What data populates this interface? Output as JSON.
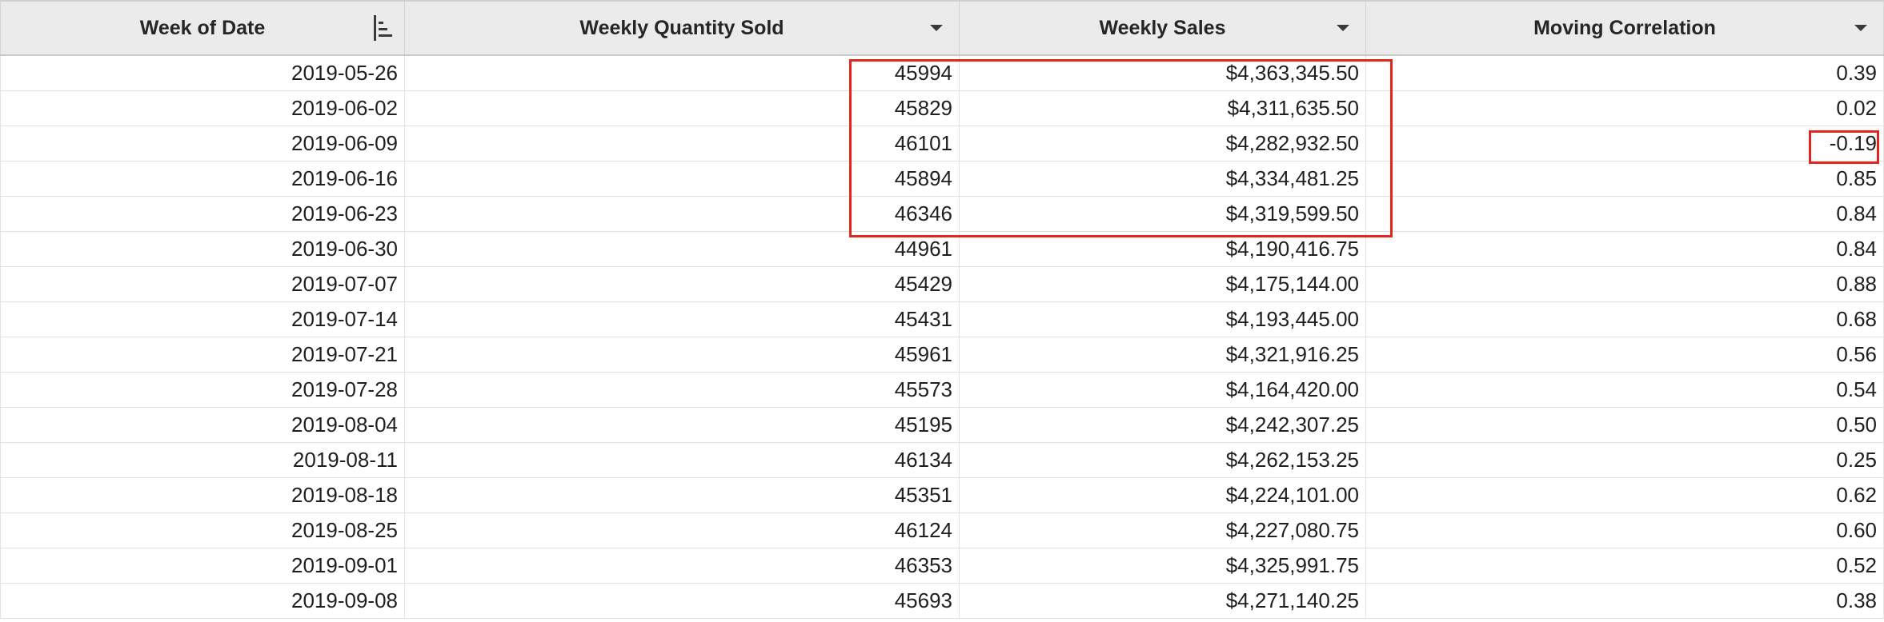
{
  "table": {
    "columns": [
      {
        "key": "week",
        "label": "Week of Date",
        "icon": "sort-icon"
      },
      {
        "key": "qty",
        "label": "Weekly Quantity Sold",
        "icon": "chevron-down-icon"
      },
      {
        "key": "sales",
        "label": "Weekly Sales",
        "icon": "chevron-down-icon"
      },
      {
        "key": "corr",
        "label": "Moving Correlation",
        "icon": "chevron-down-icon"
      }
    ],
    "rows": [
      {
        "week": "2019-05-26",
        "qty": "45994",
        "sales": "$4,363,345.50",
        "corr": "0.39"
      },
      {
        "week": "2019-06-02",
        "qty": "45829",
        "sales": "$4,311,635.50",
        "corr": "0.02"
      },
      {
        "week": "2019-06-09",
        "qty": "46101",
        "sales": "$4,282,932.50",
        "corr": "-0.19"
      },
      {
        "week": "2019-06-16",
        "qty": "45894",
        "sales": "$4,334,481.25",
        "corr": "0.85"
      },
      {
        "week": "2019-06-23",
        "qty": "46346",
        "sales": "$4,319,599.50",
        "corr": "0.84"
      },
      {
        "week": "2019-06-30",
        "qty": "44961",
        "sales": "$4,190,416.75",
        "corr": "0.84"
      },
      {
        "week": "2019-07-07",
        "qty": "45429",
        "sales": "$4,175,144.00",
        "corr": "0.88"
      },
      {
        "week": "2019-07-14",
        "qty": "45431",
        "sales": "$4,193,445.00",
        "corr": "0.68"
      },
      {
        "week": "2019-07-21",
        "qty": "45961",
        "sales": "$4,321,916.25",
        "corr": "0.56"
      },
      {
        "week": "2019-07-28",
        "qty": "45573",
        "sales": "$4,164,420.00",
        "corr": "0.54"
      },
      {
        "week": "2019-08-04",
        "qty": "45195",
        "sales": "$4,242,307.25",
        "corr": "0.50"
      },
      {
        "week": "2019-08-11",
        "qty": "46134",
        "sales": "$4,262,153.25",
        "corr": "0.25"
      },
      {
        "week": "2019-08-18",
        "qty": "45351",
        "sales": "$4,224,101.00",
        "corr": "0.62"
      },
      {
        "week": "2019-08-25",
        "qty": "46124",
        "sales": "$4,227,080.75",
        "corr": "0.60"
      },
      {
        "week": "2019-09-01",
        "qty": "46353",
        "sales": "$4,325,991.75",
        "corr": "0.52"
      },
      {
        "week": "2019-09-08",
        "qty": "45693",
        "sales": "$4,271,140.25",
        "corr": "0.38"
      }
    ]
  },
  "annotations": {
    "color": "#e0261d"
  }
}
